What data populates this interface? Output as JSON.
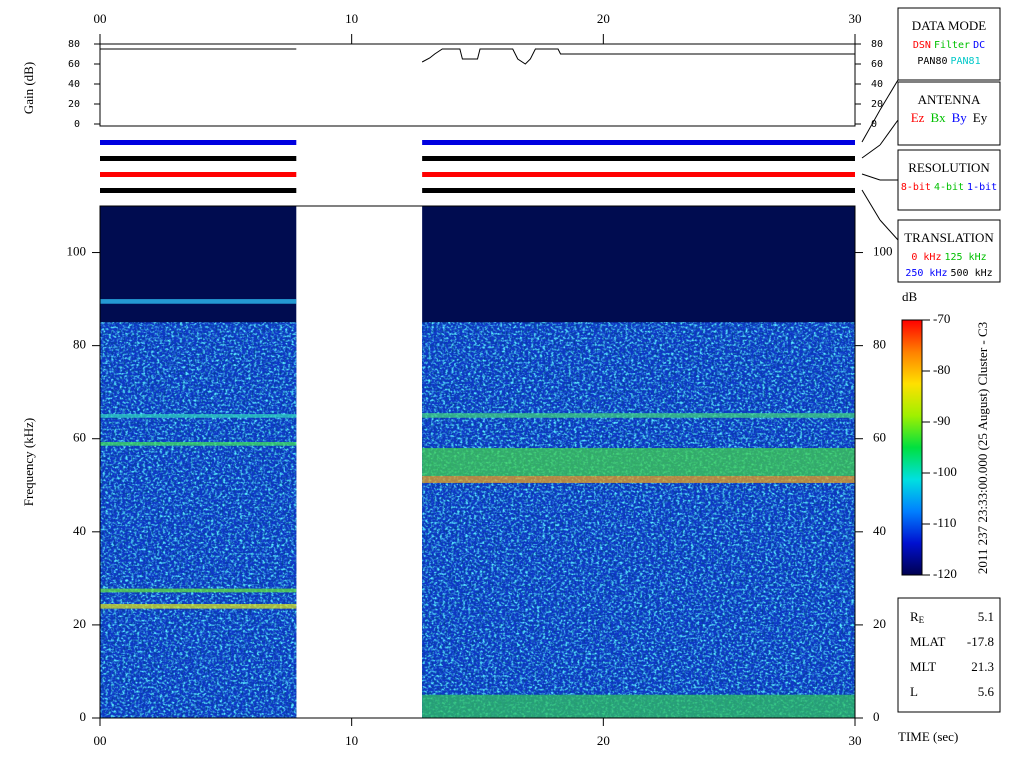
{
  "chart_data": {
    "type": "spectrogram",
    "xlabel": "TIME (sec)",
    "ylabel": "Frequency (kHz)",
    "xlim": [
      0,
      30
    ],
    "xticks": [
      {
        "value": 0,
        "label": "00"
      },
      10,
      20,
      30
    ],
    "ylim": [
      0,
      110
    ],
    "yticks": [
      0,
      20,
      40,
      60,
      80,
      100
    ],
    "segments": [
      {
        "start": 0,
        "end": 7.8,
        "ceiling": 85
      },
      {
        "start": 12.8,
        "end": 30,
        "ceiling": 85
      }
    ],
    "bands": [
      {
        "start": 0,
        "end": 7.8,
        "low": 89,
        "high": 90,
        "color": "#30c8ff"
      },
      {
        "start": 0,
        "end": 7.8,
        "low": 64.5,
        "high": 65.3,
        "color": "#30d0c0"
      },
      {
        "start": 0,
        "end": 7.8,
        "low": 58.5,
        "high": 59.3,
        "color": "#40e060"
      },
      {
        "start": 0,
        "end": 7.8,
        "low": 27,
        "high": 27.8,
        "color": "#60e040"
      },
      {
        "start": 0,
        "end": 7.8,
        "low": 23.5,
        "high": 24.5,
        "color": "#d8e020"
      },
      {
        "start": 12.8,
        "end": 30,
        "low": 64.5,
        "high": 65.5,
        "color": "#40d080"
      },
      {
        "start": 12.8,
        "end": 30,
        "low": 52,
        "high": 58,
        "color": "#40d050"
      },
      {
        "start": 12.8,
        "end": 30,
        "low": 50.5,
        "high": 52,
        "color": "#e8a020"
      },
      {
        "start": 12.8,
        "end": 30,
        "low": 0,
        "high": 5,
        "color": "#30c060"
      }
    ],
    "colorbar": {
      "label": "dB",
      "lim": [
        -120,
        -70
      ],
      "ticks": [
        -70,
        -80,
        -90,
        -100,
        -110,
        -120
      ],
      "colormap": [
        "#000050",
        "#0010d0",
        "#0080ff",
        "#00e0e0",
        "#00e040",
        "#a0f000",
        "#ffe000",
        "#ff8000",
        "#ff0000"
      ]
    },
    "gain": {
      "ylabel": "Gain (dB)",
      "ylim": [
        0,
        80
      ],
      "yticks": [
        0,
        20,
        40,
        60,
        80
      ],
      "x": [
        0,
        7.8,
        10,
        12.8,
        13.1,
        13.3,
        13.6,
        14.3,
        14.4,
        15,
        15.1,
        16.4,
        16.6,
        16.9,
        17.1,
        17.3,
        18.2,
        18.3,
        30
      ],
      "values": [
        75,
        75,
        null,
        62,
        66,
        70,
        75,
        75,
        65,
        65,
        75,
        75,
        65,
        60,
        65,
        75,
        75,
        70,
        70
      ]
    },
    "mode_bars": [
      {
        "color": "#0000e0"
      },
      {
        "color": "#000000"
      },
      {
        "color": "#ff0000"
      },
      {
        "color": "#000000"
      }
    ],
    "side_label": "2011 237 23:33:00.000 (25 August)   Cluster - C3"
  },
  "panels": {
    "data_mode": {
      "title": "DATA MODE",
      "rows": [
        [
          {
            "text": "DSN",
            "color": "#ff0000"
          },
          {
            "text": "Filter",
            "color": "#00c000"
          },
          {
            "text": "DC",
            "color": "#0000ff"
          }
        ],
        [
          {
            "text": "PAN80",
            "color": "#000000"
          },
          {
            "text": "PAN81",
            "color": "#00c8c8"
          }
        ]
      ]
    },
    "antenna": {
      "title": "ANTENNA",
      "rows": [
        [
          {
            "text": "Ez",
            "color": "#ff0000"
          },
          {
            "text": "Bx",
            "color": "#00c000"
          },
          {
            "text": "By",
            "color": "#0000ff"
          },
          {
            "text": "Ey",
            "color": "#000000"
          }
        ]
      ]
    },
    "resolution": {
      "title": "RESOLUTION",
      "rows": [
        [
          {
            "text": "8-bit",
            "color": "#ff0000"
          },
          {
            "text": "4-bit",
            "color": "#00c000"
          },
          {
            "text": "1-bit",
            "color": "#0000ff"
          }
        ]
      ]
    },
    "translation": {
      "title": "TRANSLATION",
      "rows": [
        [
          {
            "text": "0 kHz",
            "color": "#ff0000"
          },
          {
            "text": "125 kHz",
            "color": "#00c000"
          }
        ],
        [
          {
            "text": "250 kHz",
            "color": "#0000ff"
          },
          {
            "text": "500 kHz",
            "color": "#000000"
          }
        ]
      ]
    },
    "position": [
      {
        "label": "R",
        "sub": "E",
        "value": 5.1
      },
      {
        "label": "MLAT",
        "value": -17.8
      },
      {
        "label": "MLT",
        "value": 21.3
      },
      {
        "label": "L",
        "value": 5.6
      }
    ]
  }
}
